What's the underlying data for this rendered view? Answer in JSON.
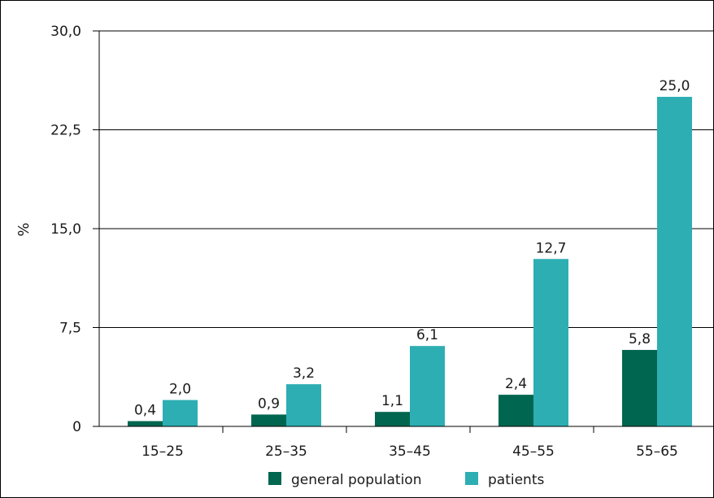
{
  "chart_data": {
    "type": "bar",
    "categories": [
      "15–25",
      "25–35",
      "35–45",
      "45–55",
      "55–65"
    ],
    "series": [
      {
        "name": "general population",
        "values": [
          0.4,
          0.9,
          1.1,
          2.4,
          5.8
        ],
        "labels": [
          "0,4",
          "0,9",
          "1,1",
          "2,4",
          "5,8"
        ],
        "color": "#00664f"
      },
      {
        "name": "patients",
        "values": [
          2.0,
          3.2,
          6.1,
          12.7,
          25.0
        ],
        "labels": [
          "2,0",
          "3,2",
          "6,1",
          "12,7",
          "25,0"
        ],
        "color": "#2daeb3"
      }
    ],
    "ylabel": "%",
    "ylim": [
      0,
      30
    ],
    "yticks": [
      0,
      7.5,
      15,
      22.5,
      30
    ],
    "ytick_labels": [
      "0",
      "7,5",
      "15,0",
      "22,5",
      "30,0"
    ],
    "grid": true,
    "legend_position": "bottom"
  }
}
